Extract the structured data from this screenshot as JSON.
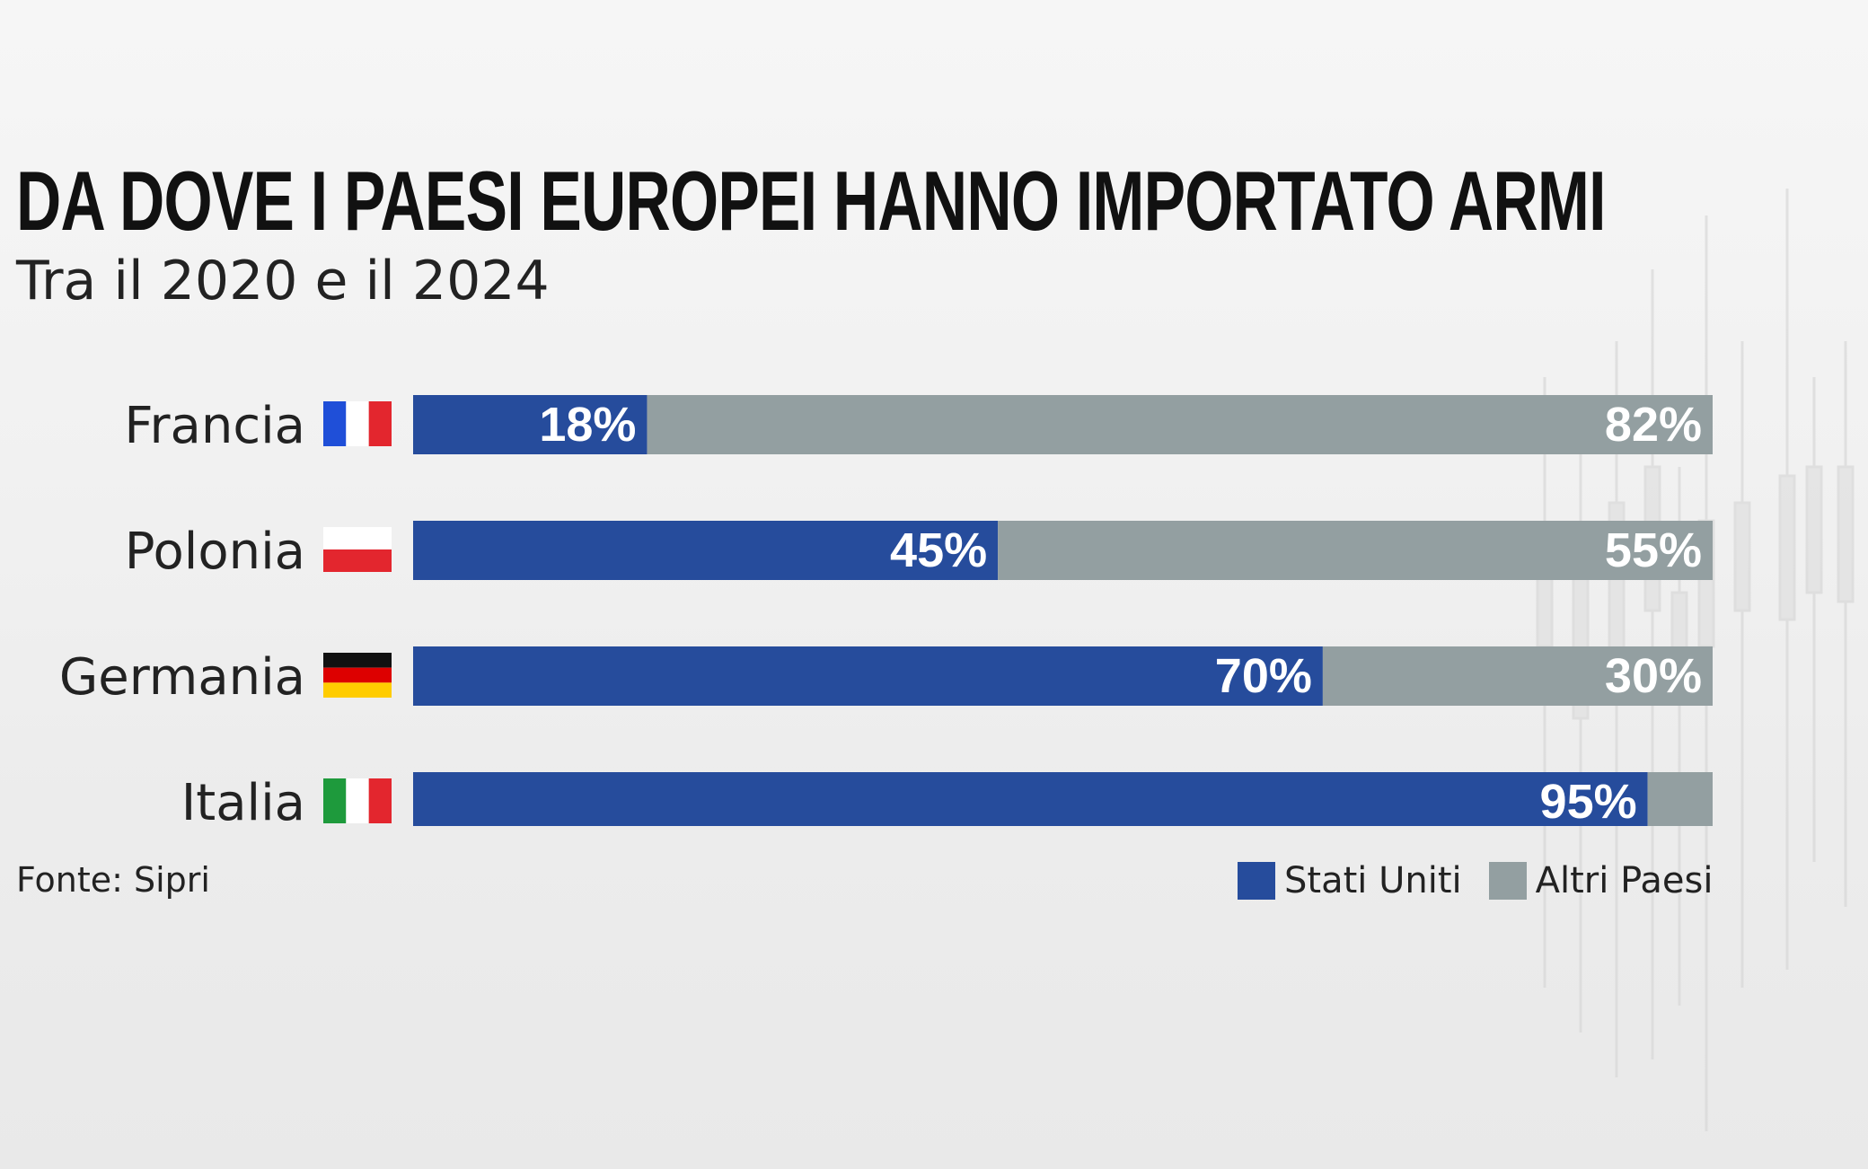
{
  "colors": {
    "primary": "#264c9c",
    "secondary": "#939fa1"
  },
  "chart_data": {
    "type": "bar",
    "orientation": "horizontal",
    "stacked": true,
    "title": "DA DOVE I PAESI EUROPEI HANNO IMPORTATO ARMI",
    "subtitle": "Tra il 2020 e il 2024",
    "categories": [
      "Francia",
      "Polonia",
      "Germania",
      "Italia"
    ],
    "flags": [
      "france-flag-icon",
      "poland-flag-icon",
      "germany-flag-icon",
      "italy-flag-icon"
    ],
    "series": [
      {
        "name": "Stati Uniti",
        "values": [
          18,
          45,
          70,
          95
        ],
        "labels": [
          "18%",
          "45%",
          "70%",
          "95%"
        ],
        "color": "#264c9c"
      },
      {
        "name": "Altri Paesi",
        "values": [
          82,
          55,
          30,
          5
        ],
        "labels": [
          "82%",
          "55%",
          "30%",
          ""
        ],
        "color": "#939fa1"
      }
    ],
    "xlim": [
      0,
      100
    ],
    "grid": false,
    "legend": "bottom-right"
  },
  "source": "Fonte: Sipri"
}
